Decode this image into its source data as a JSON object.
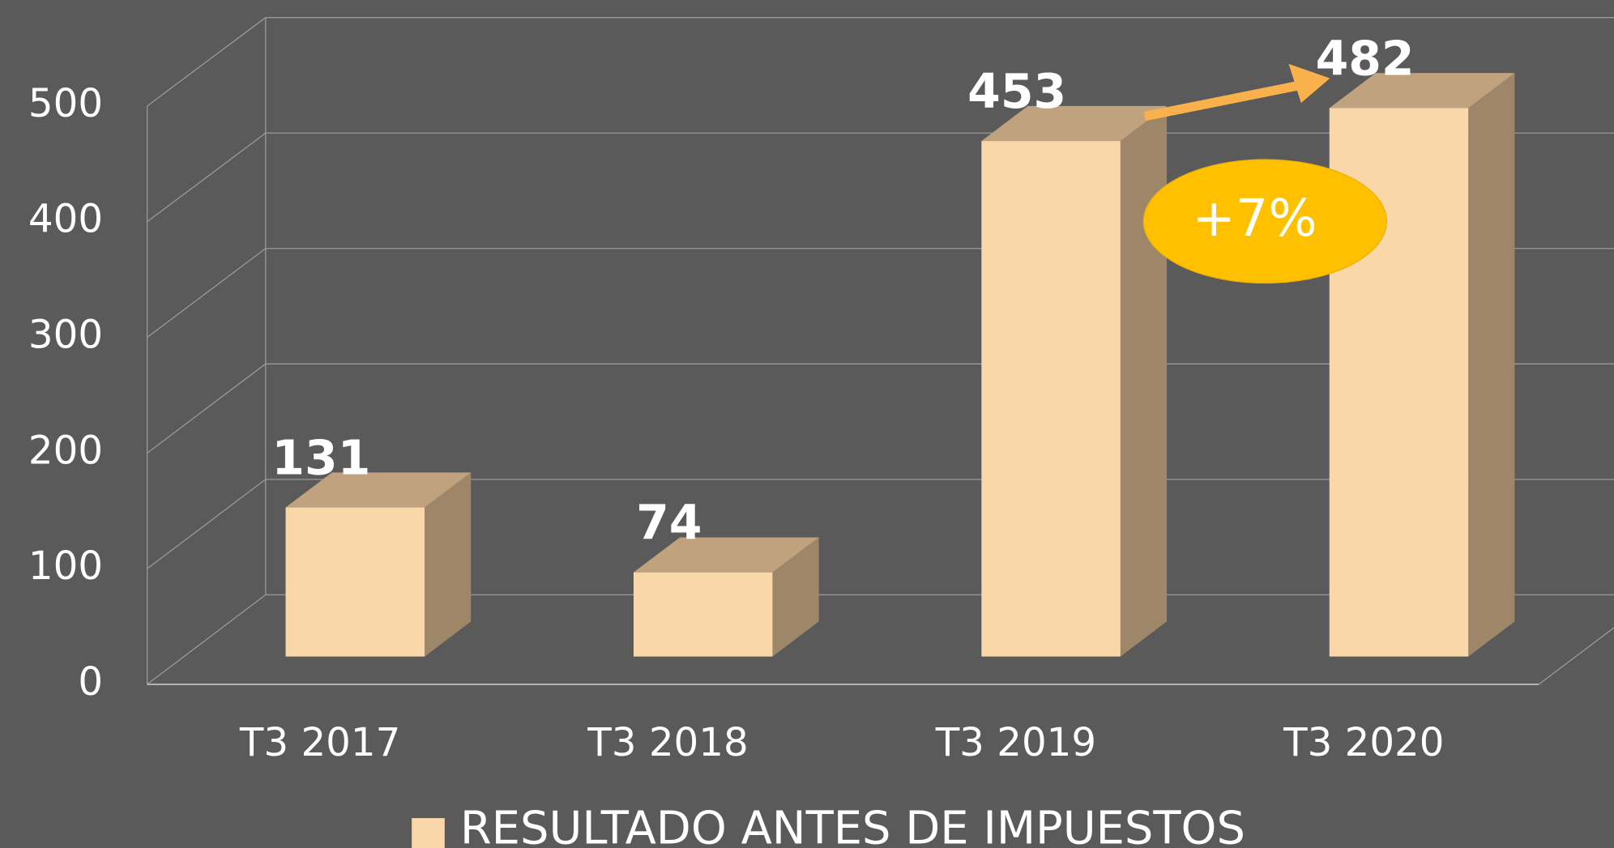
{
  "chart_data": {
    "type": "bar3d",
    "categories": [
      "T3 2017",
      "T3 2018",
      "T3 2019",
      "T3 2020"
    ],
    "series": [
      {
        "name": "RESULTADO ANTES DE IMPUESTOS",
        "color": "#f9d7a9",
        "values": [
          131,
          74,
          453,
          482
        ]
      }
    ],
    "ylim": [
      0,
      500
    ],
    "yticks": [
      0,
      100,
      200,
      300,
      400,
      500
    ],
    "grid": true,
    "annotations": [
      "+7%"
    ],
    "legend": "bottom"
  }
}
